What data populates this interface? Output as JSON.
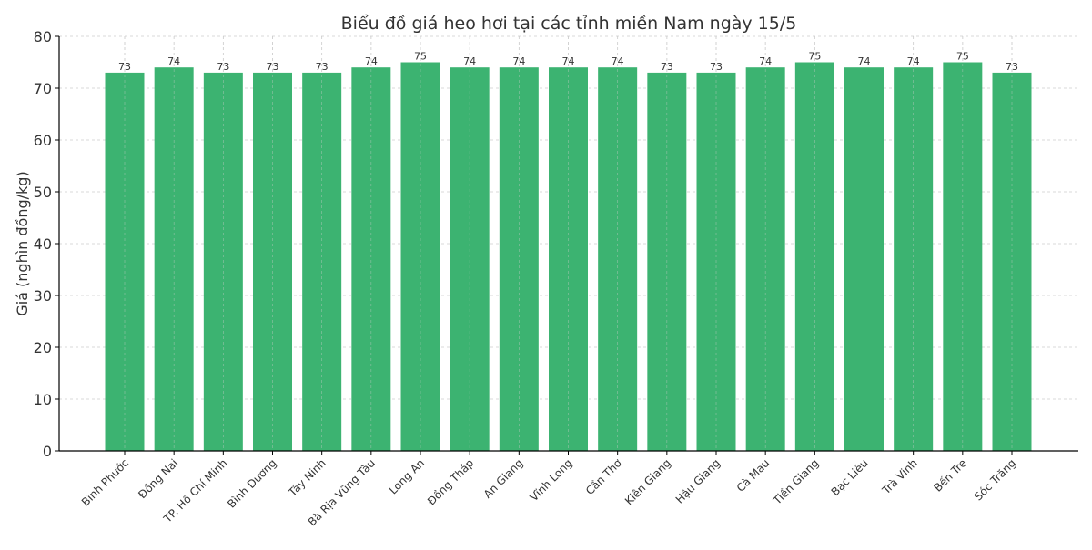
{
  "chart_data": {
    "type": "bar",
    "title": "Biểu đồ giá heo hơi tại các tỉnh miền Nam ngày 15/5",
    "xlabel": "",
    "ylabel": "Giá (nghìn đồng/kg)",
    "ylim": [
      0,
      80
    ],
    "yticks": [
      0,
      10,
      20,
      30,
      40,
      50,
      60,
      70,
      80
    ],
    "grid": true,
    "bar_color": "#3cb371",
    "categories": [
      "Bình Phước",
      "Đồng Nai",
      "TP. Hồ Chí Minh",
      "Bình Dương",
      "Tây Ninh",
      "Bà Rịa  Vũng Tàu",
      "Long An",
      "Đồng Tháp",
      "An Giang",
      "Vĩnh Long",
      "Cần Thơ",
      "Kiên Giang",
      "Hậu Giang",
      "Cà Mau",
      "Tiền Giang",
      "Bạc Liêu",
      "Trà Vinh",
      "Bến Tre",
      "Sóc Trăng"
    ],
    "values": [
      73,
      74,
      73,
      73,
      73,
      74,
      75,
      74,
      74,
      74,
      74,
      73,
      73,
      74,
      75,
      74,
      74,
      75,
      73
    ]
  }
}
